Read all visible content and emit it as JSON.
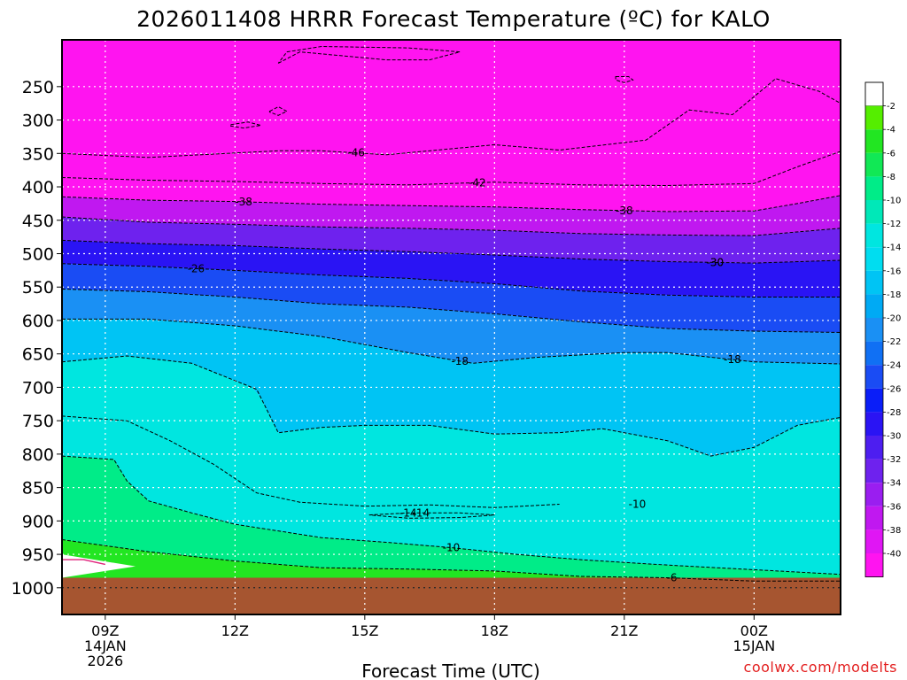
{
  "chart_data": {
    "type": "heatmap",
    "title": "2026011408 HRRR Forecast Temperature (ºC) for KALO",
    "xlabel": "Forecast Time (UTC)",
    "credit": "coolwx.com/modelts",
    "y_axis": {
      "quantity": "pressure (hPa)",
      "inverted": true,
      "range": [
        1040,
        180
      ],
      "ticks": [
        250,
        300,
        350,
        400,
        450,
        500,
        550,
        600,
        650,
        700,
        750,
        800,
        850,
        900,
        950,
        1000
      ],
      "tick_labels": [
        "250",
        "300",
        "350",
        "400",
        "450",
        "500",
        "550",
        "600",
        "650",
        "700",
        "750",
        "800",
        "850",
        "900",
        "950",
        "1000"
      ]
    },
    "x_axis": {
      "quantity": "forecast hour",
      "range": [
        8,
        26
      ],
      "ticks": [
        {
          "hour": 9,
          "lines": [
            "09Z",
            "14JAN",
            "2026"
          ]
        },
        {
          "hour": 12,
          "lines": [
            "12Z"
          ]
        },
        {
          "hour": 15,
          "lines": [
            "15Z"
          ]
        },
        {
          "hour": 18,
          "lines": [
            "18Z"
          ]
        },
        {
          "hour": 21,
          "lines": [
            "21Z"
          ]
        },
        {
          "hour": 24,
          "lines": [
            "00Z",
            "15JAN"
          ]
        }
      ]
    },
    "grid": true,
    "colorbar": {
      "levels": [
        -2,
        -4,
        -6,
        -8,
        -10,
        -12,
        -14,
        -16,
        -18,
        -20,
        -22,
        -24,
        -26,
        -28,
        -30,
        -32,
        -34,
        -36,
        -38,
        -40
      ],
      "labels": [
        "-2",
        "-4",
        "-6",
        "-8",
        "-10",
        "-12",
        "-14",
        "-16",
        "-18",
        "-20",
        "-22",
        "-24",
        "-26",
        "-28",
        "-30",
        "-32",
        "-34",
        "-36",
        "-38",
        "-40"
      ],
      "top_color": "#ffffff",
      "colors": [
        "#55ee00",
        "#22e622",
        "#11e855",
        "#00ec88",
        "#00e8b8",
        "#00e6e0",
        "#00ddf0",
        "#00c4f4",
        "#00aaf4",
        "#1a90f4",
        "#1070f4",
        "#1a4cf4",
        "#0a1ef8",
        "#2a14f4",
        "#4d1ef0",
        "#6e22ee",
        "#9a1ef0",
        "#c018f0",
        "#e016f4",
        "#ff14f0"
      ]
    },
    "ground_color": "#a65530",
    "contours": [
      {
        "value": -46,
        "label": "-46",
        "points": [
          [
            8,
            350
          ],
          [
            10,
            356
          ],
          [
            13,
            346
          ],
          [
            14,
            346
          ],
          [
            15.5,
            352
          ],
          [
            18,
            337
          ],
          [
            19.5,
            345
          ],
          [
            21.5,
            330
          ],
          [
            22.5,
            285
          ],
          [
            23.5,
            292
          ],
          [
            24.5,
            238
          ],
          [
            25.5,
            257
          ],
          [
            26,
            275
          ]
        ]
      },
      {
        "value": -42,
        "label": "-42",
        "points": [
          [
            8,
            386
          ],
          [
            10,
            390
          ],
          [
            12,
            392
          ],
          [
            14,
            395
          ],
          [
            16,
            397
          ],
          [
            18,
            393
          ],
          [
            20,
            397
          ],
          [
            22,
            398
          ],
          [
            24,
            395
          ],
          [
            25,
            370
          ],
          [
            26,
            347
          ]
        ]
      },
      {
        "value": -38,
        "label": "-38",
        "points": [
          [
            8,
            415
          ],
          [
            10,
            420
          ],
          [
            12,
            422
          ],
          [
            14,
            426
          ],
          [
            16,
            428
          ],
          [
            18,
            430
          ],
          [
            20,
            434
          ],
          [
            22,
            437
          ],
          [
            24,
            436
          ],
          [
            25,
            425
          ],
          [
            26,
            413
          ]
        ]
      },
      {
        "value": -34,
        "label": "",
        "points": [
          [
            8,
            445
          ],
          [
            10,
            453
          ],
          [
            12,
            456
          ],
          [
            14,
            460
          ],
          [
            16,
            462
          ],
          [
            18,
            465
          ],
          [
            20,
            470
          ],
          [
            22,
            472
          ],
          [
            24,
            473
          ],
          [
            26,
            462
          ]
        ]
      },
      {
        "value": -30,
        "label": "-30",
        "points": [
          [
            8,
            480
          ],
          [
            10,
            485
          ],
          [
            12,
            488
          ],
          [
            14,
            493
          ],
          [
            16,
            497
          ],
          [
            18,
            502
          ],
          [
            20,
            508
          ],
          [
            22,
            512
          ],
          [
            24,
            514
          ],
          [
            26,
            510
          ]
        ]
      },
      {
        "value": -26,
        "label": "-26",
        "points": [
          [
            8,
            515
          ],
          [
            10,
            519
          ],
          [
            12,
            525
          ],
          [
            14,
            532
          ],
          [
            16,
            537
          ],
          [
            18,
            545
          ],
          [
            20,
            556
          ],
          [
            22,
            562
          ],
          [
            24,
            565
          ],
          [
            26,
            565
          ]
        ]
      },
      {
        "value": -22,
        "label": "",
        "points": [
          [
            8,
            553
          ],
          [
            10,
            557
          ],
          [
            12,
            565
          ],
          [
            14,
            575
          ],
          [
            16,
            580
          ],
          [
            18,
            590
          ],
          [
            20,
            602
          ],
          [
            22,
            612
          ],
          [
            24,
            616
          ],
          [
            26,
            618
          ]
        ]
      },
      {
        "value": -18,
        "label": "-18",
        "points": [
          [
            8,
            598
          ],
          [
            10,
            598
          ],
          [
            12,
            608
          ],
          [
            14,
            624
          ],
          [
            16,
            648
          ],
          [
            17.5,
            664
          ],
          [
            19,
            655
          ],
          [
            21,
            648
          ],
          [
            22,
            648
          ],
          [
            24,
            662
          ],
          [
            26,
            665
          ]
        ]
      },
      {
        "value": -14,
        "label": "",
        "points": [
          [
            8,
            662
          ],
          [
            9.5,
            653
          ],
          [
            11,
            664
          ],
          [
            12.5,
            703
          ],
          [
            13,
            768
          ],
          [
            14,
            760
          ],
          [
            15,
            757
          ],
          [
            16.5,
            757
          ],
          [
            18,
            770
          ],
          [
            19.5,
            768
          ],
          [
            20.5,
            762
          ],
          [
            22,
            780
          ],
          [
            23,
            803
          ],
          [
            24,
            790
          ],
          [
            25,
            757
          ],
          [
            26,
            745
          ]
        ]
      },
      {
        "value": -10,
        "label": "",
        "points": [
          [
            8,
            743
          ],
          [
            9.5,
            750
          ],
          [
            10.5,
            780
          ],
          [
            11.5,
            815
          ],
          [
            12.5,
            858
          ],
          [
            13.5,
            872
          ],
          [
            15,
            878
          ],
          [
            16.5,
            876
          ],
          [
            18,
            880
          ],
          [
            19.5,
            875
          ]
        ]
      },
      {
        "value": -14,
        "label": "-14",
        "points": [
          [
            15.1,
            891
          ],
          [
            16,
            888
          ],
          [
            17.2,
            888
          ],
          [
            18,
            891
          ],
          [
            17.2,
            895
          ],
          [
            16,
            896
          ],
          [
            15.1,
            891
          ]
        ]
      },
      {
        "value": -10,
        "label": "-10",
        "points": [
          [
            8,
            803
          ],
          [
            9.2,
            808
          ],
          [
            9.5,
            840
          ],
          [
            10,
            870
          ],
          [
            11,
            888
          ],
          [
            12,
            905
          ],
          [
            14,
            925
          ],
          [
            15.5,
            932
          ],
          [
            17,
            940
          ],
          [
            18.5,
            950
          ],
          [
            20,
            958
          ],
          [
            22,
            966
          ],
          [
            26,
            980
          ]
        ]
      },
      {
        "value": -6,
        "label": "-6",
        "points": [
          [
            8,
            928
          ],
          [
            10,
            946
          ],
          [
            12,
            960
          ],
          [
            14,
            970
          ],
          [
            16,
            972
          ],
          [
            18,
            975
          ],
          [
            20,
            983
          ],
          [
            22,
            985
          ],
          [
            24,
            990
          ],
          [
            26,
            990
          ]
        ]
      }
    ],
    "closed_contours": [
      {
        "points": [
          [
            13,
            215
          ],
          [
            13.5,
            198
          ],
          [
            15.5,
            210
          ],
          [
            16.5,
            210
          ],
          [
            17.2,
            198
          ],
          [
            16,
            192
          ],
          [
            14,
            190
          ],
          [
            13.2,
            198
          ]
        ]
      },
      {
        "points": [
          [
            20.8,
            235
          ],
          [
            21.1,
            235
          ],
          [
            21.2,
            240
          ],
          [
            21,
            244
          ],
          [
            20.8,
            240
          ]
        ]
      },
      {
        "points": [
          [
            12.8,
            287
          ],
          [
            13,
            280
          ],
          [
            13.2,
            287
          ],
          [
            13,
            293
          ],
          [
            12.8,
            288
          ]
        ]
      },
      {
        "points": [
          [
            11.9,
            307
          ],
          [
            12.3,
            303
          ],
          [
            12.6,
            308
          ],
          [
            12.2,
            312
          ],
          [
            11.9,
            309
          ]
        ]
      }
    ],
    "surface_line": {
      "points": [
        [
          8,
          958
        ],
        [
          8.5,
          958
        ],
        [
          9,
          965
        ]
      ]
    }
  }
}
